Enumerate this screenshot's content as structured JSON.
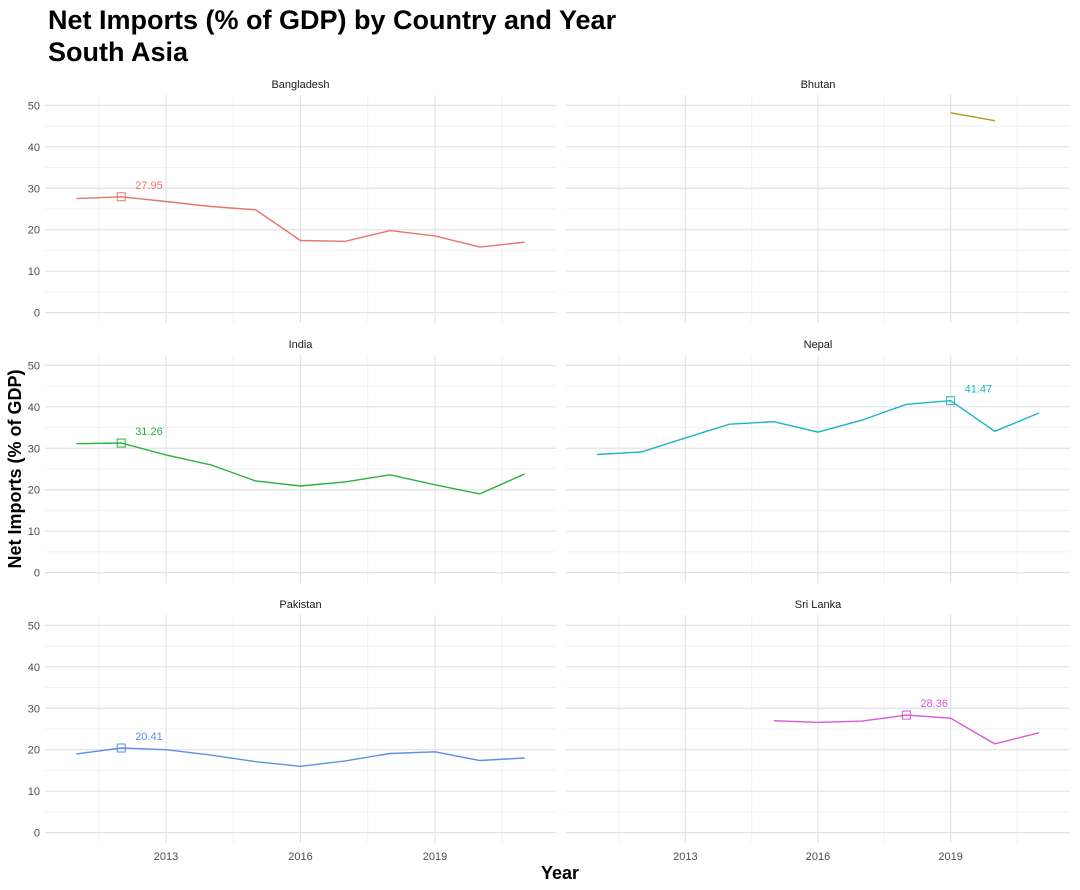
{
  "chart_data": {
    "type": "line",
    "title": "Net Imports (% of GDP) by Country and Year",
    "subtitle": "South Asia",
    "xlabel": "Year",
    "ylabel": "Net Imports (% of GDP)",
    "xlim": [
      2010.3,
      2021.7
    ],
    "ylim": [
      -2.5,
      52.5
    ],
    "x_ticks": [
      2013,
      2016,
      2019
    ],
    "y_ticks": [
      0,
      10,
      20,
      30,
      40,
      50
    ],
    "grid": true,
    "legend": "none",
    "panels": [
      {
        "name": "Bangladesh",
        "color": "#e8736b",
        "x": [
          2011,
          2012,
          2013,
          2014,
          2015,
          2016,
          2017,
          2018,
          2019,
          2020,
          2021
        ],
        "y": [
          27.5,
          27.95,
          26.8,
          25.6,
          24.8,
          17.4,
          17.2,
          19.8,
          18.5,
          15.8,
          17.0
        ],
        "highlight": {
          "x": 2012,
          "y": 27.95,
          "label": "27.95"
        }
      },
      {
        "name": "Bhutan",
        "color": "#b09a1c",
        "x": [
          2019,
          2020
        ],
        "y": [
          48.2,
          46.3
        ],
        "highlight": null
      },
      {
        "name": "India",
        "color": "#2ab23d",
        "x": [
          2011,
          2012,
          2013,
          2014,
          2015,
          2016,
          2017,
          2018,
          2019,
          2020,
          2021
        ],
        "y": [
          31.1,
          31.26,
          28.4,
          26.0,
          22.1,
          20.9,
          21.9,
          23.6,
          21.2,
          19.0,
          23.8
        ],
        "highlight": {
          "x": 2012,
          "y": 31.26,
          "label": "31.26"
        }
      },
      {
        "name": "Nepal",
        "color": "#1db5c2",
        "x": [
          2011,
          2012,
          2013,
          2014,
          2015,
          2016,
          2017,
          2018,
          2019,
          2020,
          2021
        ],
        "y": [
          28.5,
          29.1,
          32.5,
          35.8,
          36.4,
          33.9,
          36.8,
          40.6,
          41.47,
          34.1,
          38.5
        ],
        "highlight": {
          "x": 2019,
          "y": 41.47,
          "label": "41.47"
        }
      },
      {
        "name": "Pakistan",
        "color": "#5b8fe8",
        "x": [
          2011,
          2012,
          2013,
          2014,
          2015,
          2016,
          2017,
          2018,
          2019,
          2020,
          2021
        ],
        "y": [
          19.0,
          20.41,
          20.0,
          18.7,
          17.1,
          16.0,
          17.3,
          19.1,
          19.5,
          17.4,
          18.0
        ],
        "highlight": {
          "x": 2012,
          "y": 20.41,
          "label": "20.41"
        }
      },
      {
        "name": "Sri Lanka",
        "color": "#d957d6",
        "x": [
          2015,
          2016,
          2017,
          2018,
          2019,
          2020,
          2021
        ],
        "y": [
          27.0,
          26.6,
          26.9,
          28.36,
          27.6,
          21.4,
          24.1
        ],
        "highlight": {
          "x": 2018,
          "y": 28.36,
          "label": "28.36"
        }
      }
    ]
  }
}
